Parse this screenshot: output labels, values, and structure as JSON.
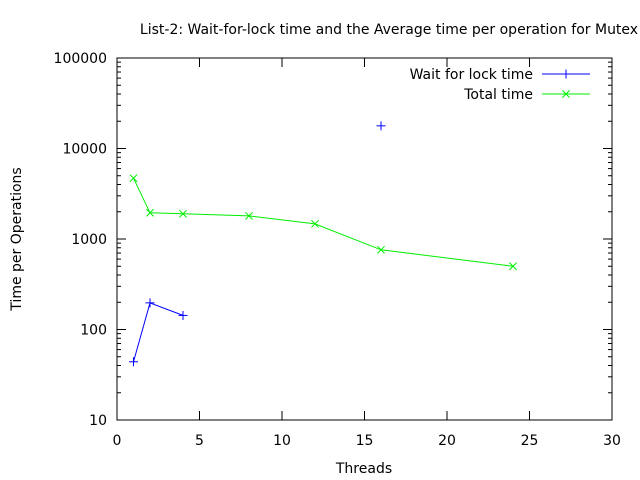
{
  "chart_data": {
    "type": "line",
    "title": "List-2: Wait-for-lock time and the Average time per operation for Mutex",
    "xlabel": "Threads",
    "ylabel": "Time per Operations",
    "xlim": [
      0,
      30
    ],
    "ylim": [
      10,
      100000
    ],
    "yscale": "log",
    "xticks": [
      0,
      5,
      10,
      15,
      20,
      25,
      30
    ],
    "xtick_labels": [
      "0",
      "5",
      "10",
      "15",
      "20",
      "25",
      "30"
    ],
    "yticks": [
      10,
      100,
      1000,
      10000,
      100000
    ],
    "ytick_labels": [
      "10",
      "100",
      "1000",
      "10000",
      "100000"
    ],
    "grid": false,
    "legend_position": "top-right",
    "series": [
      {
        "name": "Wait for lock time",
        "color": "#0000ff",
        "marker": "plus",
        "segments": [
          [
            {
              "x": 1,
              "y": 44
            },
            {
              "x": 2,
              "y": 197
            },
            {
              "x": 4,
              "y": 143
            }
          ],
          [
            {
              "x": 16,
              "y": 17800
            }
          ]
        ]
      },
      {
        "name": "Total time",
        "color": "#00ee00",
        "marker": "cross",
        "segments": [
          [
            {
              "x": 1,
              "y": 4700
            },
            {
              "x": 2,
              "y": 1950
            },
            {
              "x": 4,
              "y": 1900
            },
            {
              "x": 8,
              "y": 1800
            },
            {
              "x": 12,
              "y": 1470
            },
            {
              "x": 16,
              "y": 760
            },
            {
              "x": 24,
              "y": 500
            }
          ]
        ]
      }
    ]
  }
}
